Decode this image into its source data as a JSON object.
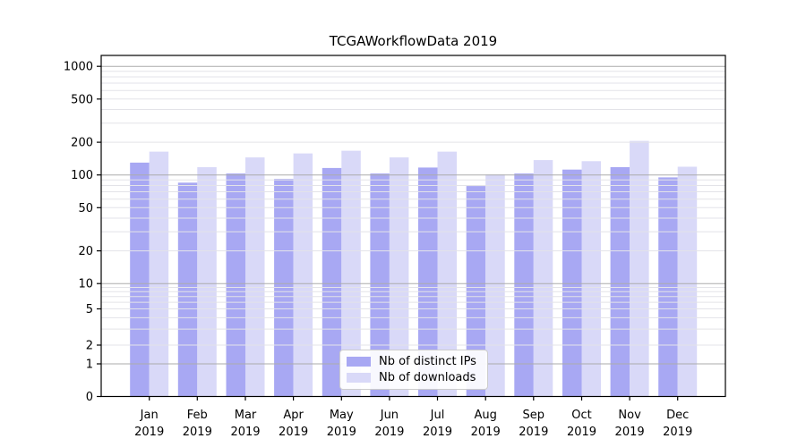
{
  "chart_data": {
    "type": "bar",
    "title": "TCGAWorkflowData 2019",
    "categories": [
      "Jan",
      "Feb",
      "Mar",
      "Apr",
      "May",
      "Jun",
      "Jul",
      "Aug",
      "Sep",
      "Oct",
      "Nov",
      "Dec"
    ],
    "x_tick_second_line": "2019",
    "series": [
      {
        "name": "Nb of distinct IPs",
        "color": "#a8a8f3",
        "values": [
          130,
          85,
          103,
          92,
          116,
          103,
          117,
          79,
          103,
          112,
          118,
          95
        ]
      },
      {
        "name": "Nb of downloads",
        "color": "#d9d9f8",
        "values": [
          164,
          118,
          145,
          158,
          167,
          145,
          164,
          101,
          137,
          134,
          206,
          119
        ]
      }
    ],
    "yscale": "symlog",
    "ytick_labels": [
      "0",
      "1",
      "2",
      "5",
      "10",
      "20",
      "50",
      "100",
      "200",
      "500",
      "1000"
    ],
    "ytick_values": [
      0,
      1,
      2,
      5,
      10,
      20,
      50,
      100,
      200,
      500,
      1000
    ],
    "ylim": [
      0,
      1260
    ],
    "grid": "both",
    "major_grid_values": [
      1,
      10,
      100,
      1000
    ],
    "minor_grid_values": [
      2,
      3,
      4,
      5,
      6,
      7,
      8,
      9,
      20,
      30,
      40,
      50,
      60,
      70,
      80,
      90,
      200,
      300,
      400,
      500,
      600,
      700,
      800,
      900
    ],
    "legend_position": "lower center",
    "colors": {
      "major_grid": "#ababab",
      "minor_grid": "#e3e3e8",
      "axis": "#000000",
      "text": "#000000"
    }
  }
}
